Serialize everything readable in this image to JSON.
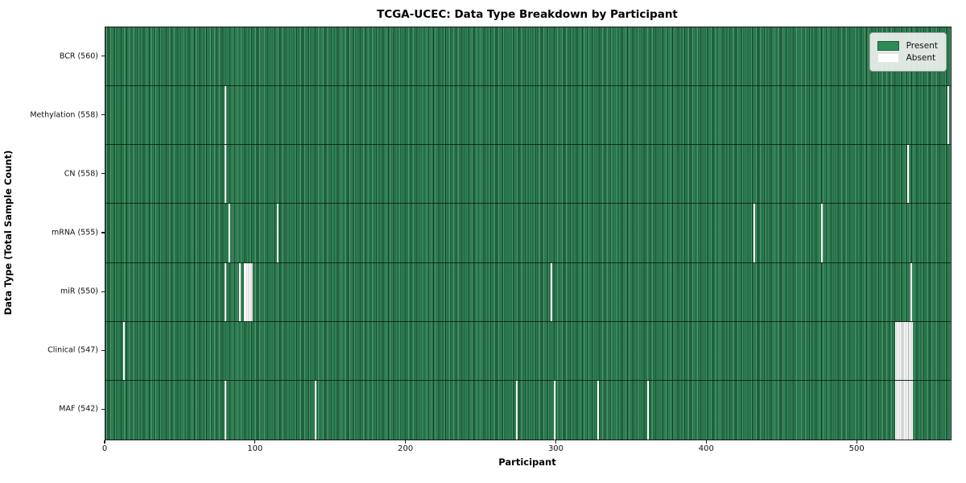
{
  "title": "TCGA-UCEC: Data Type Breakdown by Participant",
  "legend": {
    "present_label": "Present",
    "absent_label": "Absent"
  },
  "colors": {
    "present": "#2e8b57",
    "present_dark": "#1d5c3a",
    "absent": "#ffffff"
  },
  "chart_data": {
    "type": "heatmap",
    "title": "TCGA-UCEC: Data Type Breakdown by Participant",
    "xlabel": "Participant",
    "ylabel": "Data Type (Total Sample Count)",
    "x_range": [
      0,
      562
    ],
    "xticks": [
      0,
      100,
      200,
      300,
      400,
      500
    ],
    "legend": [
      "Present",
      "Absent"
    ],
    "legend_position": "upper right",
    "grid": false,
    "rows": [
      {
        "label": "BCR (560)",
        "total_samples": 560,
        "absent_participants": [],
        "absent_ranges": []
      },
      {
        "label": "Methylation (558)",
        "total_samples": 558,
        "absent_participants": [
          79,
          560
        ],
        "absent_ranges": []
      },
      {
        "label": "CN (558)",
        "total_samples": 558,
        "absent_participants": [
          79,
          533
        ],
        "absent_ranges": []
      },
      {
        "label": "mRNA (555)",
        "total_samples": 555,
        "absent_participants": [
          82,
          114,
          431,
          476
        ],
        "absent_ranges": []
      },
      {
        "label": "miR (550)",
        "total_samples": 550,
        "absent_participants": [
          79,
          89,
          92,
          296,
          535
        ],
        "absent_ranges": [
          [
            93,
            97
          ]
        ]
      },
      {
        "label": "Clinical (547)",
        "total_samples": 547,
        "absent_participants": [
          12
        ],
        "absent_ranges": [
          [
            525,
            536
          ]
        ]
      },
      {
        "label": "MAF (542)",
        "total_samples": 542,
        "absent_participants": [
          79,
          139,
          273,
          298,
          327,
          360
        ],
        "absent_ranges": [
          [
            525,
            536
          ]
        ]
      }
    ]
  }
}
